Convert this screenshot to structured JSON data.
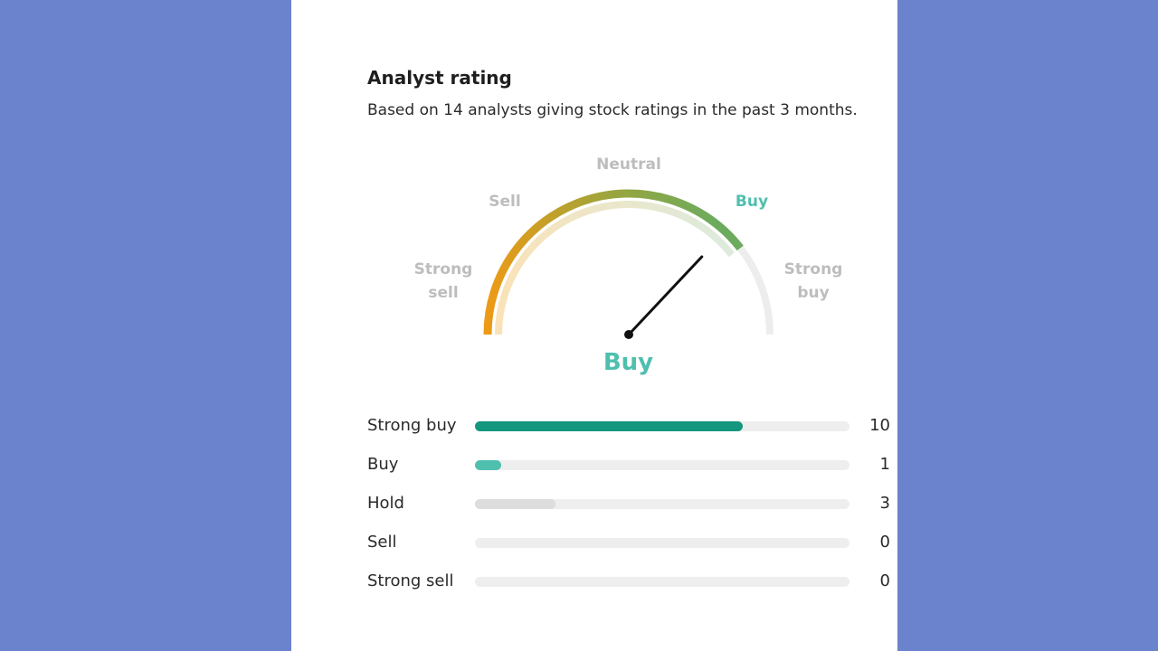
{
  "header": {
    "title": "Analyst rating",
    "subtitle": "Based on 14 analysts giving stock ratings in the past 3 months."
  },
  "gauge": {
    "labels": {
      "strong_sell": "Strong\nsell",
      "sell": "Sell",
      "neutral": "Neutral",
      "buy": "Buy",
      "strong_buy": "Strong\nbuy"
    },
    "active": "buy",
    "needle_fraction": 0.74,
    "verdict": "Buy",
    "colors": {
      "start": "#ee9a15",
      "mid": "#9aa53e",
      "end": "#6cab5e",
      "track": "#ededed",
      "active": "#4fbfae"
    }
  },
  "breakdown": [
    {
      "label": "Strong buy",
      "count": "10",
      "fraction": 0.714,
      "color": "#14967f"
    },
    {
      "label": "Buy",
      "count": "1",
      "fraction": 0.071,
      "color": "#4fbfae"
    },
    {
      "label": "Hold",
      "count": "3",
      "fraction": 0.214,
      "color": "#dddddd"
    },
    {
      "label": "Sell",
      "count": "0",
      "fraction": 0,
      "color": "#dddddd"
    },
    {
      "label": "Strong sell",
      "count": "0",
      "fraction": 0,
      "color": "#dddddd"
    }
  ]
}
